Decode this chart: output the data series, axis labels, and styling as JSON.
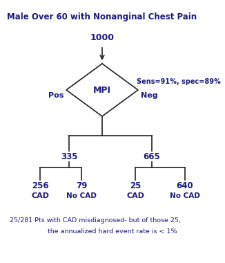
{
  "title": "Male Over 60 with Nonanginal Chest Pain",
  "text_color": "#1a1a7e",
  "background_color": "#ffffff",
  "sens_spec_text": "Sens=91%, spec=89%",
  "root_value": "1000",
  "diamond_label": "MPI",
  "pos_label": "Pos",
  "neg_label": "Neg",
  "pos_subtotal": "335",
  "neg_subtotal": "665",
  "pos_left_value": "256",
  "pos_left_label": "CAD",
  "pos_right_value": "79",
  "pos_right_label": "No CAD",
  "neg_left_value": "25",
  "neg_left_label": "CAD",
  "neg_right_value": "640",
  "neg_right_label": "No CAD",
  "footnote_line1": "25/281 Pts with CAD misdiagnosed- but of those 25,",
  "footnote_line2": "the annualized hard event rate is < 1%"
}
